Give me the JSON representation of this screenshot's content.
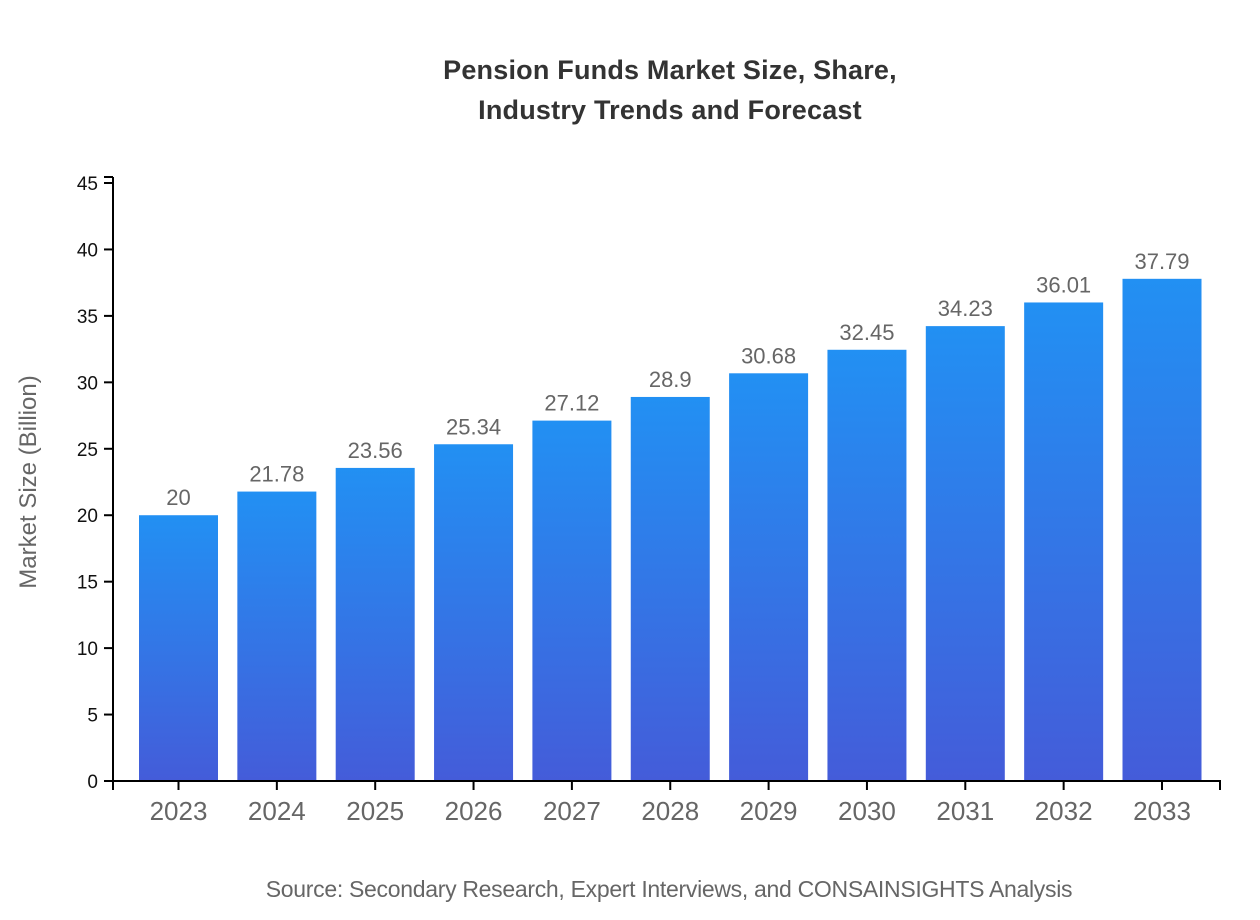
{
  "title": "Pension Funds Market Size, Share,\nIndustry Trends and Forecast",
  "source": "Source: Secondary Research, Expert Interviews, and CONSAINSIGHTS Analysis",
  "chart_data": {
    "type": "bar",
    "title": "Pension Funds Market Size, Share, Industry Trends and Forecast",
    "categories": [
      "2023",
      "2024",
      "2025",
      "2026",
      "2027",
      "2028",
      "2029",
      "2030",
      "2031",
      "2032",
      "2033"
    ],
    "values": [
      20,
      21.78,
      23.56,
      25.34,
      27.12,
      28.9,
      30.68,
      32.45,
      34.23,
      36.01,
      37.79
    ],
    "value_labels": [
      "20",
      "21.78",
      "23.56",
      "25.34",
      "27.12",
      "28.9",
      "30.68",
      "32.45",
      "34.23",
      "36.01",
      "37.79"
    ],
    "xlabel": "",
    "ylabel": "Market Size (Billion)",
    "ylim": [
      0,
      45
    ],
    "ytick_step": 5,
    "grid": false,
    "legend": false
  },
  "colors": {
    "bar_gradient_top": "#2290F3",
    "bar_gradient_bottom": "#445CD9",
    "axis": "#000000",
    "y_tick_label": "#111111",
    "x_tick_label": "#666666",
    "value_label": "#666666",
    "axis_title": "#666666",
    "title_text": "#333333",
    "source_text": "#666666",
    "background": "#ffffff"
  }
}
